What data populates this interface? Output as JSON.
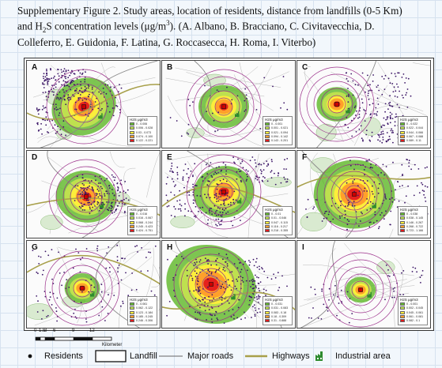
{
  "caption": {
    "line1": "Supplementary Figure 2. Study areas, location of residents, distance from landfills (0-5 Km)",
    "line2_a": "and H",
    "line2_sub": "2",
    "line2_b": "S concentration levels (μg/m",
    "line2_sup": "3",
    "line2_c": "). (A. Albano, B. Bracciano, C. Civitavecchia, D.",
    "line3": "Colleferro, E. Guidonia, F. Latina, G. Roccasecca, H. Roma, I. Viterbo)"
  },
  "colors": {
    "ring": "#9b2f8a",
    "residents": "#3a1466",
    "roads": "#8a8a8a",
    "highways": "#a8a04a",
    "industrial": "#2e8b2e",
    "levels": [
      "#66bb33",
      "#c2e24f",
      "#ffee3a",
      "#ff9b2a",
      "#e41a1c"
    ]
  },
  "panels": [
    {
      "id": "A",
      "label": "A",
      "legend_title": "H2S μg/m3",
      "levels": [
        "0 - 0.006",
        "0.006 - 0.028",
        "0.03 - 0.073",
        "0.074 - 0.100",
        "0.122 - 0.221"
      ]
    },
    {
      "id": "B",
      "label": "B",
      "legend_title": "H2S μg/m3",
      "levels": [
        "0 - 0.001",
        "0.001 - 0.021",
        "0.021 - 0.094",
        "0.094 - 0.142",
        "0.143 - 0.201"
      ]
    },
    {
      "id": "C",
      "label": "C",
      "legend_title": "H2S μg/m3",
      "levels": [
        "0 - 0.022",
        "0.022 - 0.044",
        "0.044 - 0.066",
        "0.067 - 0.088",
        "0.089 - 0.11"
      ]
    },
    {
      "id": "D",
      "label": "D",
      "legend_title": "H2S μg/m3",
      "levels": [
        "0 - 0.016",
        "0.016 - 0.067",
        "0.068 - 0.244",
        "0.245 - 0.423",
        "0.424 - 0.751"
      ]
    },
    {
      "id": "E",
      "label": "E",
      "legend_title": "H2S μg/m3",
      "levels": [
        "0 - 0.01",
        "0.01 - 0.046",
        "0.047 - 0.115",
        "0.116 - 0.217",
        "0.218 - 0.355"
      ]
    },
    {
      "id": "F",
      "label": "F",
      "legend_title": "H2S μg/m3",
      "levels": [
        "0 - 0.038",
        "0.038 - 0.145",
        "0.146 - 0.267",
        "0.268 - 0.722",
        "0.723 - 1.166"
      ]
    },
    {
      "id": "G",
      "label": "G",
      "legend_title": "H2S μg/m3",
      "levels": [
        "0 - 0.061",
        "0.062 - 0.122",
        "0.123 - 0.184",
        "0.185 - 0.245",
        "0.246 - 0.306"
      ]
    },
    {
      "id": "H",
      "label": "H",
      "legend_title": "H2S μg/m3",
      "levels": [
        "0 - 0.031",
        "0.031 - 0.083",
        "0.083 - 0.18",
        "0.18 - 0.309",
        "0.31 - 0.888"
      ]
    },
    {
      "id": "I",
      "label": "I",
      "legend_title": "H2S μg/m3",
      "levels": [
        "0 - 0.001",
        "0.002 - 0.045",
        "0.045 - 0.061",
        "0.061 - 0.081",
        "0.082 - 0.1"
      ]
    }
  ],
  "scale": {
    "ticks": [
      "0",
      "1.5",
      "3",
      "6",
      "9",
      "12"
    ],
    "unit": "Kilometer"
  },
  "legend": {
    "residents": "Residents",
    "landfill": "Landfill",
    "major_roads": "Major roads",
    "highways": "Highways",
    "industrial": "Industrial area"
  }
}
